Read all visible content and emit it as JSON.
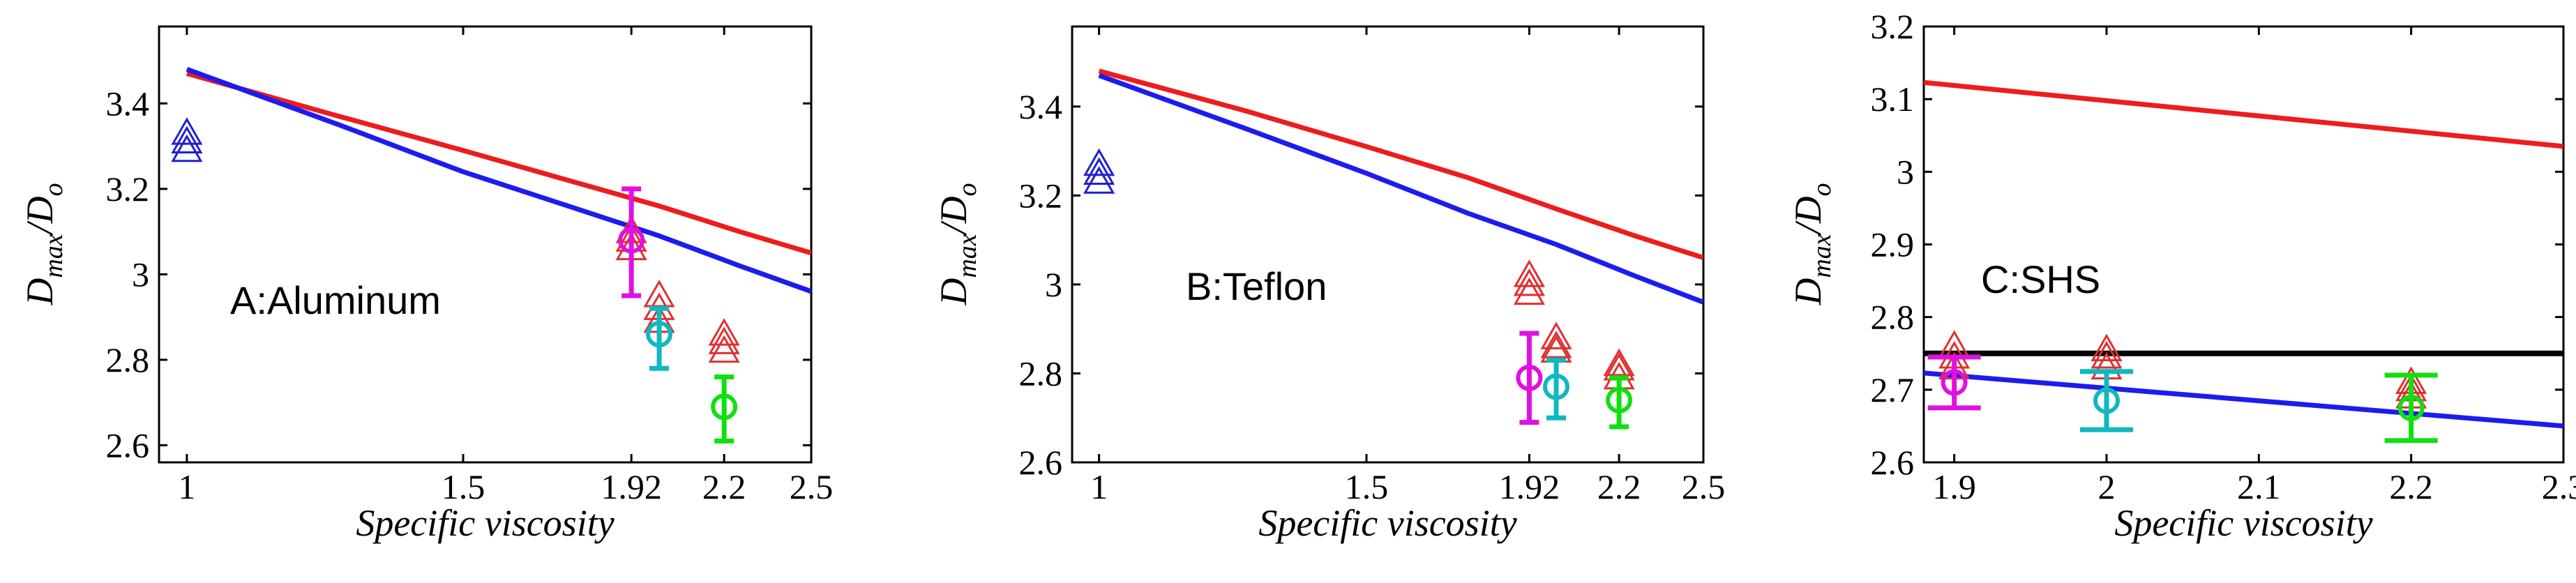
{
  "chart_data": [
    {
      "type": "line",
      "panel": "A",
      "annotation": "A:Aluminum",
      "xlabel": "Specific viscosity",
      "ylabel": {
        "main": "D",
        "sub1": "max",
        "sep": "/D",
        "sub2": "o"
      },
      "xscale": "log",
      "xlim": [
        0.96,
        2.5
      ],
      "ylim": [
        2.56,
        3.58
      ],
      "xticks": [
        1,
        1.5,
        1.92,
        2.2,
        2.5
      ],
      "xtick_labels": [
        "1",
        "1.5",
        "1.92",
        "2.2",
        "2.5"
      ],
      "yticks": [
        2.6,
        2.8,
        3.0,
        3.2,
        3.4
      ],
      "ytick_labels": [
        "2.6",
        "2.8",
        "3",
        "3.2",
        "3.4"
      ],
      "series": [
        {
          "name": "model-red",
          "color": "#ee1c1c",
          "x": [
            1,
            1.25,
            1.5,
            1.75,
            2,
            2.25,
            2.5
          ],
          "y": [
            3.47,
            3.37,
            3.29,
            3.22,
            3.16,
            3.1,
            3.05
          ]
        },
        {
          "name": "model-blue",
          "color": "#1c1cee",
          "x": [
            1,
            1.25,
            1.5,
            1.75,
            2,
            2.25,
            2.5
          ],
          "y": [
            3.48,
            3.35,
            3.24,
            3.16,
            3.09,
            3.02,
            2.96
          ]
        }
      ],
      "triangles": [
        {
          "x": 1.0,
          "ys": [
            3.29,
            3.31,
            3.33
          ],
          "color": "#2020d0"
        },
        {
          "x": 1.92,
          "ys": [
            3.06,
            3.08,
            3.1
          ],
          "color": "#e03030"
        },
        {
          "x": 2.0,
          "ys": [
            2.89,
            2.92,
            2.95
          ],
          "color": "#e03030"
        },
        {
          "x": 2.2,
          "ys": [
            2.82,
            2.84,
            2.86
          ],
          "color": "#e03030"
        }
      ],
      "errorbars": [
        {
          "x": 1.92,
          "y": 3.08,
          "lo": 2.95,
          "hi": 3.2,
          "color": "#e010e0"
        },
        {
          "x": 2.0,
          "y": 2.86,
          "lo": 2.78,
          "hi": 2.92,
          "color": "#10b8c0"
        },
        {
          "x": 2.2,
          "y": 2.69,
          "lo": 2.61,
          "hi": 2.76,
          "color": "#10e010"
        }
      ],
      "hlines": []
    },
    {
      "type": "line",
      "panel": "B",
      "annotation": "B:Teflon",
      "xlabel": "Specific viscosity",
      "ylabel": {
        "main": "D",
        "sub1": "max",
        "sep": "/D",
        "sub2": "o"
      },
      "xscale": "log",
      "xlim": [
        0.96,
        2.5
      ],
      "ylim": [
        2.6,
        3.58
      ],
      "xticks": [
        1,
        1.5,
        1.92,
        2.2,
        2.5
      ],
      "xtick_labels": [
        "1",
        "1.5",
        "1.92",
        "2.2",
        "2.5"
      ],
      "yticks": [
        2.6,
        2.8,
        3.0,
        3.2,
        3.4
      ],
      "ytick_labels": [
        "2.6",
        "2.8",
        "3",
        "3.2",
        "3.4"
      ],
      "series": [
        {
          "name": "model-red",
          "color": "#ee1c1c",
          "x": [
            1,
            1.25,
            1.5,
            1.75,
            2,
            2.25,
            2.5
          ],
          "y": [
            3.48,
            3.39,
            3.31,
            3.24,
            3.17,
            3.11,
            3.06
          ]
        },
        {
          "name": "model-blue",
          "color": "#1c1cee",
          "x": [
            1,
            1.25,
            1.5,
            1.75,
            2,
            2.25,
            2.5
          ],
          "y": [
            3.47,
            3.35,
            3.25,
            3.16,
            3.09,
            3.02,
            2.96
          ]
        }
      ],
      "triangles": [
        {
          "x": 1.0,
          "ys": [
            3.23,
            3.25,
            3.27
          ],
          "color": "#2020d0"
        },
        {
          "x": 1.92,
          "ys": [
            2.98,
            3.0,
            3.02
          ],
          "color": "#e03030"
        },
        {
          "x": 2.0,
          "ys": [
            2.85,
            2.86,
            2.88
          ],
          "color": "#e03030"
        },
        {
          "x": 2.2,
          "ys": [
            2.79,
            2.81,
            2.82
          ],
          "color": "#e03030"
        }
      ],
      "errorbars": [
        {
          "x": 1.92,
          "y": 2.79,
          "lo": 2.69,
          "hi": 2.89,
          "color": "#e010e0"
        },
        {
          "x": 2.0,
          "y": 2.77,
          "lo": 2.7,
          "hi": 2.83,
          "color": "#10b8c0"
        },
        {
          "x": 2.2,
          "y": 2.74,
          "lo": 2.68,
          "hi": 2.79,
          "color": "#10e010"
        }
      ],
      "hlines": []
    },
    {
      "type": "line",
      "panel": "C",
      "annotation": "C:SHS",
      "xlabel": "Specific viscosity",
      "ylabel": {
        "main": "D",
        "sub1": "max",
        "sep": "/D",
        "sub2": "o"
      },
      "xscale": "linear",
      "xlim": [
        1.88,
        2.3
      ],
      "ylim": [
        2.6,
        3.2
      ],
      "xticks": [
        1.9,
        2.0,
        2.1,
        2.2,
        2.3
      ],
      "xtick_labels": [
        "1.9",
        "2",
        "2.1",
        "2.2",
        "2.3"
      ],
      "yticks": [
        2.6,
        2.7,
        2.8,
        2.9,
        3.0,
        3.1,
        3.2
      ],
      "ytick_labels": [
        "2.6",
        "2.7",
        "2.8",
        "2.9",
        "3",
        "3.1",
        "3.2"
      ],
      "series": [
        {
          "name": "model-red",
          "color": "#ee1c1c",
          "x": [
            1.88,
            2.3
          ],
          "y": [
            3.123,
            3.035
          ]
        },
        {
          "name": "model-blue",
          "color": "#1c1cee",
          "x": [
            1.88,
            2.3
          ],
          "y": [
            2.723,
            2.65
          ]
        }
      ],
      "triangles": [
        {
          "x": 1.9,
          "ys": [
            2.73,
            2.745,
            2.76
          ],
          "color": "#e03030"
        },
        {
          "x": 2.0,
          "ys": [
            2.73,
            2.745,
            2.755
          ],
          "color": "#e03030"
        },
        {
          "x": 2.2,
          "ys": [
            2.69,
            2.7,
            2.71
          ],
          "color": "#e03030"
        }
      ],
      "errorbars": [
        {
          "x": 1.9,
          "y": 2.71,
          "lo": 2.675,
          "hi": 2.745,
          "color": "#e010e0"
        },
        {
          "x": 2.0,
          "y": 2.685,
          "lo": 2.645,
          "hi": 2.725,
          "color": "#10b8c0"
        },
        {
          "x": 2.2,
          "y": 2.675,
          "lo": 2.63,
          "hi": 2.72,
          "color": "#10e010"
        }
      ],
      "hlines": [
        {
          "y": 2.75,
          "color": "#000000"
        }
      ]
    }
  ]
}
